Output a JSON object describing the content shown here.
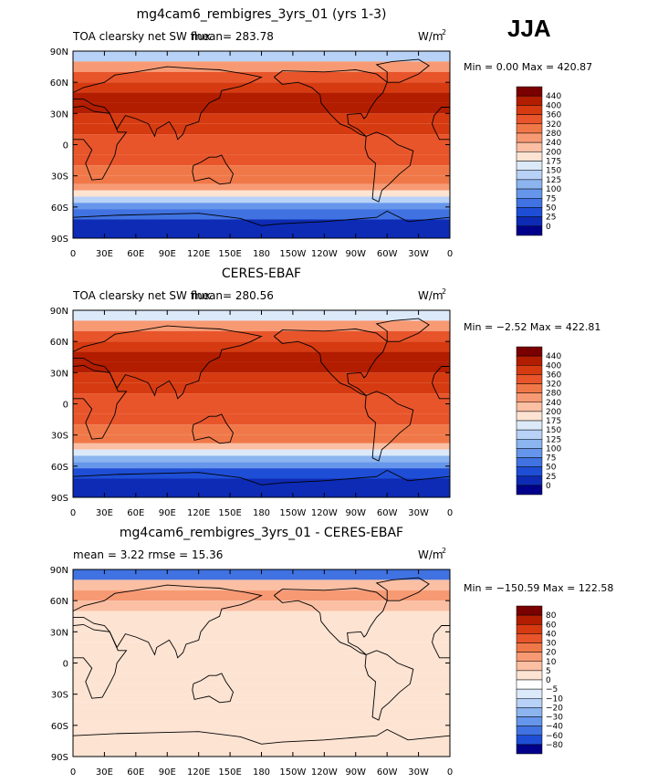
{
  "season_label": "JJA",
  "chart_data": [
    {
      "type": "heatmap",
      "title": "mg4cam6_rembigres_3yrs_01 (yrs 1-3)",
      "left_text": "TOA clearsky net SW flux",
      "mean_text": "mean=  283.78",
      "units": "W/m",
      "units_sup": "2",
      "minmax": "Min =    0.00  Max = 420.87",
      "xticks": [
        "0",
        "30E",
        "60E",
        "90E",
        "120E",
        "150E",
        "180",
        "150W",
        "120W",
        "90W",
        "60W",
        "30W",
        "0"
      ],
      "yticks": [
        "90N",
        "60N",
        "30N",
        "0",
        "30S",
        "60S",
        "90S"
      ],
      "colorbar": {
        "labels": [
          "440",
          "400",
          "360",
          "320",
          "280",
          "240",
          "200",
          "175",
          "150",
          "125",
          "100",
          "75",
          "50",
          "25",
          "0"
        ],
        "colors": [
          "#7a0000",
          "#b21d00",
          "#d63a10",
          "#e8552b",
          "#f07848",
          "#f79a74",
          "#fbbfa3",
          "#fde3d2",
          "#dbe9f9",
          "#b7d1f7",
          "#8cb4ef",
          "#6696eb",
          "#4072e1",
          "#1e4ed6",
          "#0d2bb4",
          "#00008a"
        ]
      },
      "zonal_band_values": [
        130,
        240,
        320,
        380,
        400,
        400,
        380,
        360,
        340,
        330,
        320,
        310,
        290,
        240,
        175,
        130,
        90,
        50,
        20
      ],
      "band_edges_lat": [
        90,
        80,
        70,
        60,
        50,
        40,
        30,
        20,
        10,
        0,
        -10,
        -20,
        -30,
        -38,
        -44,
        -50,
        -56,
        -62,
        -72,
        -90
      ]
    },
    {
      "type": "heatmap",
      "title": "CERES-EBAF",
      "left_text": "TOA clearsky net SW flux",
      "mean_text": "mean=  280.56",
      "units": "W/m",
      "units_sup": "2",
      "minmax": "Min =  −2.52  Max = 422.81",
      "xticks": [
        "0",
        "30E",
        "60E",
        "90E",
        "120E",
        "150E",
        "180",
        "150W",
        "120W",
        "90W",
        "60W",
        "30W",
        "0"
      ],
      "yticks": [
        "90N",
        "60N",
        "30N",
        "0",
        "30S",
        "60S",
        "90S"
      ],
      "colorbar": {
        "labels": [
          "440",
          "400",
          "360",
          "320",
          "280",
          "240",
          "200",
          "175",
          "150",
          "125",
          "100",
          "75",
          "50",
          "25",
          "0"
        ],
        "colors": [
          "#7a0000",
          "#b21d00",
          "#d63a10",
          "#e8552b",
          "#f07848",
          "#f79a74",
          "#fbbfa3",
          "#fde3d2",
          "#dbe9f9",
          "#b7d1f7",
          "#8cb4ef",
          "#6696eb",
          "#4072e1",
          "#1e4ed6",
          "#0d2bb4",
          "#00008a"
        ]
      },
      "zonal_band_values": [
        150,
        260,
        330,
        380,
        400,
        400,
        380,
        360,
        340,
        330,
        320,
        310,
        290,
        230,
        170,
        120,
        85,
        45,
        15
      ],
      "band_edges_lat": [
        90,
        80,
        70,
        60,
        50,
        40,
        30,
        20,
        10,
        0,
        -10,
        -20,
        -30,
        -38,
        -44,
        -50,
        -56,
        -62,
        -72,
        -90
      ]
    },
    {
      "type": "heatmap",
      "title": "mg4cam6_rembigres_3yrs_01 - CERES-EBAF",
      "left_text": "mean =     3.22        rmse =    15.36",
      "mean_text": "",
      "units": "W/m",
      "units_sup": "2",
      "minmax": "Min = −150.59  Max = 122.58",
      "xticks": [
        "0",
        "30E",
        "60E",
        "90E",
        "120E",
        "150E",
        "180",
        "150W",
        "120W",
        "90W",
        "60W",
        "30W",
        "0"
      ],
      "yticks": [
        "90N",
        "60N",
        "30N",
        "0",
        "30S",
        "60S",
        "90S"
      ],
      "colorbar": {
        "labels": [
          "80",
          "60",
          "40",
          "30",
          "20",
          "10",
          "5",
          "0",
          "−5",
          "−10",
          "−20",
          "−30",
          "−40",
          "−60",
          "−80"
        ],
        "colors": [
          "#7a0000",
          "#b21d00",
          "#d63a10",
          "#e8552b",
          "#f07848",
          "#f79a74",
          "#fbbfa3",
          "#fde3d2",
          "#ffffff",
          "#dbe9f9",
          "#b7d1f7",
          "#8cb4ef",
          "#6696eb",
          "#4072e1",
          "#1e4ed6",
          "#00008a"
        ]
      },
      "zonal_band_values": [
        -60,
        8,
        12,
        6,
        4,
        3,
        2,
        2,
        1,
        2,
        1,
        1,
        2,
        1,
        2,
        3,
        2,
        2,
        1
      ],
      "band_edges_lat": [
        90,
        80,
        70,
        60,
        50,
        40,
        30,
        20,
        10,
        0,
        -10,
        -20,
        -30,
        -38,
        -44,
        -50,
        -56,
        -62,
        -72,
        -90
      ]
    }
  ]
}
